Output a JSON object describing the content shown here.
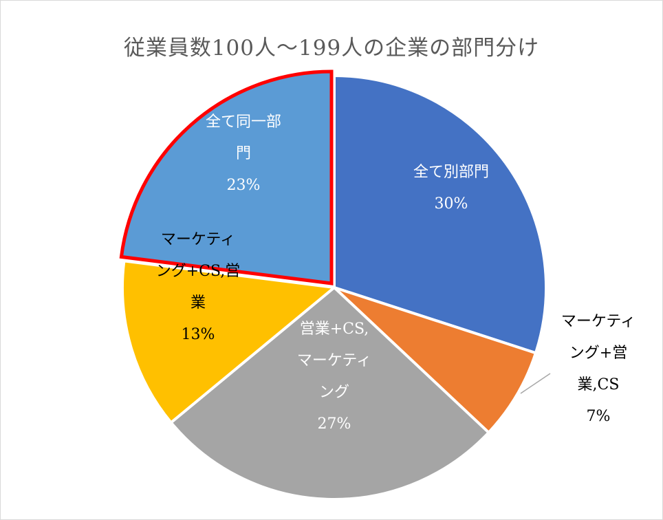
{
  "chart_data": {
    "type": "pie",
    "title": "従業員数100人～199人の企業の部門分け",
    "slices": [
      {
        "label": "全て別部門",
        "value": 30,
        "value_label": "30%",
        "color": "#4472C4",
        "label_lines": [
          "全て別部門"
        ],
        "label_color": "#ffffff"
      },
      {
        "label": "マーケティング+営業,CS",
        "value": 7,
        "value_label": "7%",
        "color": "#ED7D31",
        "label_lines": [
          "マーケティ",
          "ング+営",
          "業,CS"
        ],
        "label_color": "#000000"
      },
      {
        "label": "営業+CS,マーケティング",
        "value": 27,
        "value_label": "27%",
        "color": "#A5A5A5",
        "label_lines": [
          "営業+CS,",
          "マーケティ",
          "ング"
        ],
        "label_color": "#ffffff"
      },
      {
        "label": "マーケティング+CS,営業",
        "value": 13,
        "value_label": "13%",
        "color": "#FFC000",
        "label_lines": [
          "マーケティ",
          "ング+CS,営",
          "業"
        ],
        "label_color": "#000000"
      },
      {
        "label": "全て同一部門",
        "value": 23,
        "value_label": "23%",
        "color": "#5B9BD5",
        "label_lines": [
          "全て同一部",
          "門"
        ],
        "label_color": "#ffffff",
        "highlighted": true
      }
    ],
    "highlight_color": "#FF0000",
    "start_angle": "12 o'clock",
    "direction": "clockwise"
  }
}
